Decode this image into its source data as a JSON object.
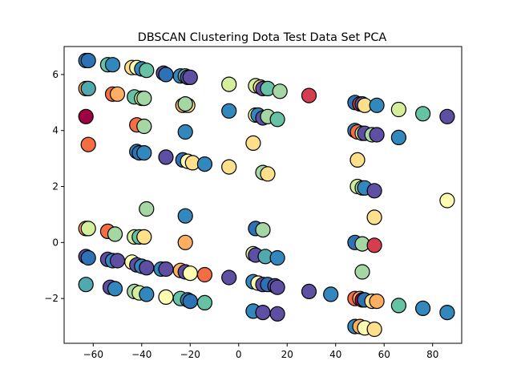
{
  "chart_data": {
    "type": "scatter",
    "title": "DBSCAN Clustering Dota Test Data Set PCA",
    "xlabel": "",
    "ylabel": "",
    "xlim": [
      -72,
      92
    ],
    "ylim": [
      -3.6,
      7.0
    ],
    "xticks": [
      -60,
      -40,
      -20,
      0,
      20,
      40,
      60,
      80
    ],
    "yticks": [
      -2,
      0,
      2,
      4,
      6
    ],
    "grid": false,
    "legend": "none",
    "marker_edge_color": "#000000",
    "palette": {
      "dark_blue": "#2d72b5",
      "purple": "#5e4fa2",
      "teal": "#3288bd",
      "cyan": "#50a9af",
      "green": "#66c2a5",
      "light_green": "#a4d7a4",
      "pale_green": "#d5ee9b",
      "pale_yellow": "#fdfcb1",
      "yellow": "#fee08b",
      "light_orange": "#fdae61",
      "orange": "#f46d43",
      "red": "#d53e4f",
      "dark_red": "#9e0142"
    },
    "points": [
      {
        "x": -63,
        "y": 6.5,
        "c": "#3288bd"
      },
      {
        "x": -62,
        "y": 6.5,
        "c": "#2d72b5"
      },
      {
        "x": -54,
        "y": 6.35,
        "c": "#66c2a5"
      },
      {
        "x": -52,
        "y": 6.35,
        "c": "#3288bd"
      },
      {
        "x": -44,
        "y": 6.25,
        "c": "#fee08b"
      },
      {
        "x": -42,
        "y": 6.25,
        "c": "#fdfcb1"
      },
      {
        "x": -40,
        "y": 6.2,
        "c": "#3288bd"
      },
      {
        "x": -38,
        "y": 6.15,
        "c": "#66c2a5"
      },
      {
        "x": -31,
        "y": 6.05,
        "c": "#5e4fa2"
      },
      {
        "x": -30,
        "y": 6.0,
        "c": "#2d72b5"
      },
      {
        "x": -24,
        "y": 5.95,
        "c": "#3288bd"
      },
      {
        "x": -22,
        "y": 5.95,
        "c": "#50a9af"
      },
      {
        "x": -21,
        "y": 5.9,
        "c": "#5e4fa2"
      },
      {
        "x": -20,
        "y": 5.9,
        "c": "#5e4fa2"
      },
      {
        "x": -63,
        "y": 5.5,
        "c": "#fdae61"
      },
      {
        "x": -62,
        "y": 5.5,
        "c": "#50a9af"
      },
      {
        "x": -52,
        "y": 5.3,
        "c": "#f46d43"
      },
      {
        "x": -50,
        "y": 5.3,
        "c": "#fdae61"
      },
      {
        "x": -43,
        "y": 5.2,
        "c": "#66c2a5"
      },
      {
        "x": -40,
        "y": 5.15,
        "c": "#d5ee9b"
      },
      {
        "x": -39,
        "y": 5.15,
        "c": "#a4d7a4"
      },
      {
        "x": -23,
        "y": 4.9,
        "c": "#fdae61"
      },
      {
        "x": -21,
        "y": 4.9,
        "c": "#fee08b"
      },
      {
        "x": -22,
        "y": 4.95,
        "c": "#a4d7a4"
      },
      {
        "x": -4,
        "y": 5.65,
        "c": "#d5ee9b"
      },
      {
        "x": 7,
        "y": 5.6,
        "c": "#d5ee9b"
      },
      {
        "x": 9,
        "y": 5.55,
        "c": "#fee08b"
      },
      {
        "x": 10,
        "y": 5.5,
        "c": "#5e4fa2"
      },
      {
        "x": 12,
        "y": 5.5,
        "c": "#66c2a5"
      },
      {
        "x": 17,
        "y": 5.4,
        "c": "#a4d7a4"
      },
      {
        "x": 29,
        "y": 5.25,
        "c": "#d53e4f"
      },
      {
        "x": -4,
        "y": 4.7,
        "c": "#3288bd"
      },
      {
        "x": 7,
        "y": 4.55,
        "c": "#fdfcb1"
      },
      {
        "x": 8,
        "y": 4.55,
        "c": "#3288bd"
      },
      {
        "x": 10,
        "y": 4.45,
        "c": "#5e4fa2"
      },
      {
        "x": 12,
        "y": 4.5,
        "c": "#a4d7a4"
      },
      {
        "x": 16,
        "y": 4.4,
        "c": "#66c2a5"
      },
      {
        "x": -63,
        "y": 4.5,
        "c": "#9e0142"
      },
      {
        "x": -62,
        "y": 3.5,
        "c": "#f46d43"
      },
      {
        "x": -42,
        "y": 4.2,
        "c": "#f46d43"
      },
      {
        "x": -39,
        "y": 4.15,
        "c": "#a4d7a4"
      },
      {
        "x": -22,
        "y": 3.95,
        "c": "#3288bd"
      },
      {
        "x": 6,
        "y": 3.55,
        "c": "#fee08b"
      },
      {
        "x": -42,
        "y": 3.25,
        "c": "#3288bd"
      },
      {
        "x": -41,
        "y": 3.2,
        "c": "#2d72b5"
      },
      {
        "x": -39,
        "y": 3.2,
        "c": "#3288bd"
      },
      {
        "x": -30,
        "y": 3.05,
        "c": "#5e4fa2"
      },
      {
        "x": -23,
        "y": 2.95,
        "c": "#2d72b5"
      },
      {
        "x": -21,
        "y": 2.9,
        "c": "#fdfcb1"
      },
      {
        "x": -19,
        "y": 2.85,
        "c": "#fee08b"
      },
      {
        "x": -14,
        "y": 2.8,
        "c": "#3288bd"
      },
      {
        "x": -4,
        "y": 2.7,
        "c": "#fee08b"
      },
      {
        "x": 10,
        "y": 2.5,
        "c": "#a4d7a4"
      },
      {
        "x": 12,
        "y": 2.45,
        "c": "#fee08b"
      },
      {
        "x": 48,
        "y": 5.0,
        "c": "#2d72b5"
      },
      {
        "x": 50,
        "y": 4.95,
        "c": "#d53e4f"
      },
      {
        "x": 51,
        "y": 4.95,
        "c": "#5e4fa2"
      },
      {
        "x": 52,
        "y": 4.9,
        "c": "#fee08b"
      },
      {
        "x": 57,
        "y": 4.9,
        "c": "#3288bd"
      },
      {
        "x": 66,
        "y": 4.75,
        "c": "#d5ee9b"
      },
      {
        "x": 76,
        "y": 4.6,
        "c": "#66c2a5"
      },
      {
        "x": 86,
        "y": 4.5,
        "c": "#5e4fa2"
      },
      {
        "x": 48,
        "y": 4.0,
        "c": "#3288bd"
      },
      {
        "x": 49,
        "y": 3.95,
        "c": "#f46d43"
      },
      {
        "x": 51,
        "y": 3.9,
        "c": "#d5ee9b"
      },
      {
        "x": 52,
        "y": 3.9,
        "c": "#5e4fa2"
      },
      {
        "x": 55,
        "y": 3.85,
        "c": "#a4d7a4"
      },
      {
        "x": 57,
        "y": 3.85,
        "c": "#5e4fa2"
      },
      {
        "x": 66,
        "y": 3.75,
        "c": "#3288bd"
      },
      {
        "x": 49,
        "y": 2.95,
        "c": "#fee08b"
      },
      {
        "x": 49,
        "y": 2.0,
        "c": "#d5ee9b"
      },
      {
        "x": 51,
        "y": 1.95,
        "c": "#a4d7a4"
      },
      {
        "x": 52,
        "y": 1.95,
        "c": "#3288bd"
      },
      {
        "x": 56,
        "y": 1.85,
        "c": "#5e4fa2"
      },
      {
        "x": 86,
        "y": 1.5,
        "c": "#fdfcb1"
      },
      {
        "x": -38,
        "y": 1.2,
        "c": "#a4d7a4"
      },
      {
        "x": -22,
        "y": 0.95,
        "c": "#3288bd"
      },
      {
        "x": 56,
        "y": 0.9,
        "c": "#fee08b"
      },
      {
        "x": -63,
        "y": 0.5,
        "c": "#fdae61"
      },
      {
        "x": -62,
        "y": 0.5,
        "c": "#d5ee9b"
      },
      {
        "x": -54,
        "y": 0.4,
        "c": "#f46d43"
      },
      {
        "x": -51,
        "y": 0.3,
        "c": "#a4d7a4"
      },
      {
        "x": -43,
        "y": 0.2,
        "c": "#d5ee9b"
      },
      {
        "x": -41,
        "y": 0.2,
        "c": "#66c2a5"
      },
      {
        "x": -39,
        "y": 0.2,
        "c": "#fee08b"
      },
      {
        "x": -22,
        "y": 0.0,
        "c": "#fdae61"
      },
      {
        "x": 7,
        "y": 0.5,
        "c": "#2d72b5"
      },
      {
        "x": 10,
        "y": 0.45,
        "c": "#a4d7a4"
      },
      {
        "x": 48,
        "y": 0.0,
        "c": "#2d72b5"
      },
      {
        "x": 51,
        "y": -0.05,
        "c": "#a4d7a4"
      },
      {
        "x": 56,
        "y": -0.1,
        "c": "#d53e4f"
      },
      {
        "x": -63,
        "y": -0.5,
        "c": "#5e4fa2"
      },
      {
        "x": -62,
        "y": -0.55,
        "c": "#2d72b5"
      },
      {
        "x": -54,
        "y": -0.6,
        "c": "#5e4fa2"
      },
      {
        "x": -52,
        "y": -0.65,
        "c": "#3288bd"
      },
      {
        "x": -50,
        "y": -0.65,
        "c": "#5e4fa2"
      },
      {
        "x": -44,
        "y": -0.7,
        "c": "#fdfcb1"
      },
      {
        "x": -42,
        "y": -0.8,
        "c": "#5e4fa2"
      },
      {
        "x": -40,
        "y": -0.85,
        "c": "#3288bd"
      },
      {
        "x": -38,
        "y": -0.9,
        "c": "#5e4fa2"
      },
      {
        "x": -32,
        "y": -0.95,
        "c": "#3288bd"
      },
      {
        "x": -30,
        "y": -0.95,
        "c": "#5e4fa2"
      },
      {
        "x": -24,
        "y": -1.0,
        "c": "#fdae61"
      },
      {
        "x": -22,
        "y": -1.05,
        "c": "#5e4fa2"
      },
      {
        "x": -20,
        "y": -1.1,
        "c": "#fdfcb1"
      },
      {
        "x": -14,
        "y": -1.15,
        "c": "#f46d43"
      },
      {
        "x": -4,
        "y": -1.25,
        "c": "#5e4fa2"
      },
      {
        "x": 6,
        "y": -0.4,
        "c": "#d5ee9b"
      },
      {
        "x": 7,
        "y": -0.45,
        "c": "#5e4fa2"
      },
      {
        "x": 11,
        "y": -0.5,
        "c": "#50a9af"
      },
      {
        "x": 16,
        "y": -0.55,
        "c": "#3288bd"
      },
      {
        "x": 51,
        "y": -1.05,
        "c": "#a4d7a4"
      },
      {
        "x": 6,
        "y": -1.4,
        "c": "#3288bd"
      },
      {
        "x": 8,
        "y": -1.45,
        "c": "#fdfcb1"
      },
      {
        "x": 10,
        "y": -1.5,
        "c": "#5e4fa2"
      },
      {
        "x": 12,
        "y": -1.5,
        "c": "#2d72b5"
      },
      {
        "x": 15,
        "y": -1.55,
        "c": "#5e4fa2"
      },
      {
        "x": 16,
        "y": -1.6,
        "c": "#5e4fa2"
      },
      {
        "x": 29,
        "y": -1.75,
        "c": "#5e4fa2"
      },
      {
        "x": 38,
        "y": -1.85,
        "c": "#3288bd"
      },
      {
        "x": -63,
        "y": -1.5,
        "c": "#50a9af"
      },
      {
        "x": -53,
        "y": -1.6,
        "c": "#5e4fa2"
      },
      {
        "x": -51,
        "y": -1.65,
        "c": "#3288bd"
      },
      {
        "x": -43,
        "y": -1.75,
        "c": "#a4d7a4"
      },
      {
        "x": -41,
        "y": -1.8,
        "c": "#d5ee9b"
      },
      {
        "x": -38,
        "y": -1.85,
        "c": "#3288bd"
      },
      {
        "x": -30,
        "y": -1.95,
        "c": "#fdfcb1"
      },
      {
        "x": -24,
        "y": -2.0,
        "c": "#66c2a5"
      },
      {
        "x": -21,
        "y": -2.05,
        "c": "#3288bd"
      },
      {
        "x": -20,
        "y": -2.1,
        "c": "#2d72b5"
      },
      {
        "x": -14,
        "y": -2.15,
        "c": "#66c2a5"
      },
      {
        "x": 48,
        "y": -2.0,
        "c": "#f46d43"
      },
      {
        "x": 50,
        "y": -2.0,
        "c": "#fdae61"
      },
      {
        "x": 51,
        "y": -2.05,
        "c": "#9e0142"
      },
      {
        "x": 52,
        "y": -2.05,
        "c": "#2d72b5"
      },
      {
        "x": 55,
        "y": -2.1,
        "c": "#fee08b"
      },
      {
        "x": 57,
        "y": -2.1,
        "c": "#fdae61"
      },
      {
        "x": 66,
        "y": -2.25,
        "c": "#66c2a5"
      },
      {
        "x": 76,
        "y": -2.35,
        "c": "#3288bd"
      },
      {
        "x": 86,
        "y": -2.5,
        "c": "#3288bd"
      },
      {
        "x": 6,
        "y": -2.45,
        "c": "#3288bd"
      },
      {
        "x": 10,
        "y": -2.5,
        "c": "#5e4fa2"
      },
      {
        "x": 16,
        "y": -2.55,
        "c": "#5e4fa2"
      },
      {
        "x": 48,
        "y": -3.0,
        "c": "#3288bd"
      },
      {
        "x": 50,
        "y": -3.0,
        "c": "#fdae61"
      },
      {
        "x": 52,
        "y": -3.05,
        "c": "#fdfcb1"
      },
      {
        "x": 56,
        "y": -3.1,
        "c": "#fee08b"
      }
    ]
  }
}
